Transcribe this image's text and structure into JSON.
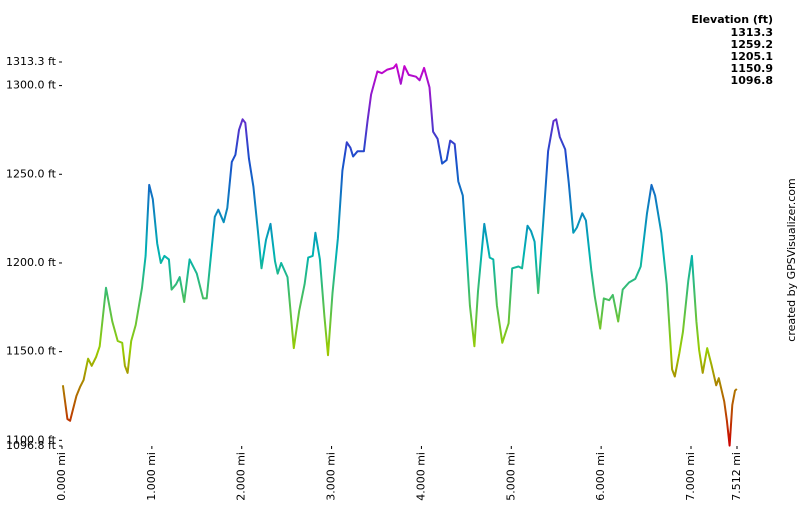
{
  "chart_data": {
    "type": "line",
    "legend_title": "Elevation (ft)",
    "credit": "created by GPSVisualizer.com",
    "color_stops": [
      {
        "value": 1313.3,
        "color": "#cc00cc"
      },
      {
        "value": 1259.2,
        "color": "#1a4dcc"
      },
      {
        "value": 1205.1,
        "color": "#00b3b3"
      },
      {
        "value": 1150.9,
        "color": "#99cc00"
      },
      {
        "value": 1096.8,
        "color": "#cc0000"
      }
    ],
    "x": [
      0.01,
      0.06,
      0.09,
      0.16,
      0.2,
      0.24,
      0.29,
      0.33,
      0.38,
      0.42,
      0.49,
      0.56,
      0.62,
      0.67,
      0.7,
      0.73,
      0.77,
      0.82,
      0.89,
      0.93,
      0.97,
      1.01,
      1.06,
      1.1,
      1.14,
      1.19,
      1.22,
      1.27,
      1.31,
      1.36,
      1.42,
      1.5,
      1.57,
      1.61,
      1.7,
      1.74,
      1.8,
      1.84,
      1.89,
      1.93,
      1.97,
      2.01,
      2.04,
      2.08,
      2.13,
      2.18,
      2.22,
      2.27,
      2.32,
      2.37,
      2.4,
      2.44,
      2.51,
      2.58,
      2.64,
      2.7,
      2.74,
      2.79,
      2.82,
      2.87,
      2.92,
      2.96,
      3.01,
      3.07,
      3.12,
      3.17,
      3.21,
      3.24,
      3.29,
      3.36,
      3.4,
      3.44,
      3.51,
      3.56,
      3.62,
      3.69,
      3.72,
      3.77,
      3.81,
      3.86,
      3.94,
      3.98,
      4.03,
      4.09,
      4.13,
      4.18,
      4.23,
      4.28,
      4.32,
      4.37,
      4.41,
      4.46,
      4.5,
      4.54,
      4.59,
      4.63,
      4.7,
      4.76,
      4.8,
      4.84,
      4.9,
      4.97,
      5.01,
      5.08,
      5.12,
      5.18,
      5.22,
      5.26,
      5.3,
      5.36,
      5.41,
      5.47,
      5.5,
      5.54,
      5.6,
      5.64,
      5.69,
      5.73,
      5.79,
      5.83,
      5.89,
      5.93,
      5.99,
      6.03,
      6.09,
      6.13,
      6.19,
      6.24,
      6.31,
      6.38,
      6.44,
      6.51,
      6.56,
      6.6,
      6.67,
      6.73,
      6.79,
      6.82,
      6.87,
      6.91,
      6.97,
      7.01,
      7.06,
      7.09,
      7.13,
      7.18,
      7.23,
      7.28,
      7.31,
      7.37,
      7.4,
      7.43,
      7.46,
      7.49,
      7.51
    ],
    "values": [
      1131,
      1112,
      1111,
      1125,
      1130,
      1134,
      1146,
      1142,
      1147,
      1153,
      1186,
      1167,
      1156,
      1155,
      1142,
      1138,
      1156,
      1165,
      1186,
      1204,
      1244,
      1236,
      1211,
      1200,
      1204,
      1202,
      1185,
      1188,
      1192,
      1178,
      1202,
      1194,
      1180,
      1180,
      1226,
      1230,
      1223,
      1231,
      1257,
      1261,
      1275,
      1281,
      1279,
      1259,
      1243,
      1218,
      1197,
      1213,
      1222,
      1201,
      1194,
      1200,
      1192,
      1152,
      1173,
      1188,
      1203,
      1204,
      1217,
      1202,
      1170,
      1148,
      1183,
      1214,
      1252,
      1268,
      1265,
      1260,
      1263,
      1263,
      1280,
      1295,
      1308,
      1307,
      1309,
      1310,
      1312,
      1301,
      1311,
      1306,
      1305,
      1303,
      1310,
      1299,
      1274,
      1270,
      1256,
      1258,
      1269,
      1267,
      1246,
      1238,
      1208,
      1176,
      1153,
      1184,
      1222,
      1203,
      1202,
      1176,
      1155,
      1166,
      1197,
      1198,
      1197,
      1221,
      1218,
      1212,
      1183,
      1226,
      1263,
      1280,
      1281,
      1271,
      1264,
      1245,
      1217,
      1220,
      1228,
      1224,
      1196,
      1181,
      1163,
      1180,
      1179,
      1182,
      1167,
      1185,
      1189,
      1191,
      1198,
      1228,
      1244,
      1238,
      1217,
      1188,
      1140,
      1136,
      1149,
      1161,
      1190,
      1204,
      1167,
      1151,
      1138,
      1152,
      1142,
      1131,
      1135,
      1122,
      1111,
      1097,
      1120,
      1128,
      1129
    ],
    "xlim": [
      0,
      7.512
    ],
    "ylim": [
      1096.8,
      1313.3
    ],
    "xticks": [
      {
        "value": 0,
        "label": "0.000 mi"
      },
      {
        "value": 1,
        "label": "1.000 mi"
      },
      {
        "value": 2,
        "label": "2.000 mi"
      },
      {
        "value": 3,
        "label": "3.000 mi"
      },
      {
        "value": 4,
        "label": "4.000 mi"
      },
      {
        "value": 5,
        "label": "5.000 mi"
      },
      {
        "value": 6,
        "label": "6.000 mi"
      },
      {
        "value": 7,
        "label": "7.000 mi"
      },
      {
        "value": 7.512,
        "label": "7.512 mi"
      }
    ],
    "yticks": [
      {
        "value": 1096.8,
        "label": "1096.8 ft"
      },
      {
        "value": 1100,
        "label": "1100.0 ft"
      },
      {
        "value": 1150,
        "label": "1150.0 ft"
      },
      {
        "value": 1200,
        "label": "1200.0 ft"
      },
      {
        "value": 1250,
        "label": "1250.0 ft"
      },
      {
        "value": 1300,
        "label": "1300.0 ft"
      },
      {
        "value": 1313.3,
        "label": "1313.3 ft"
      }
    ]
  }
}
